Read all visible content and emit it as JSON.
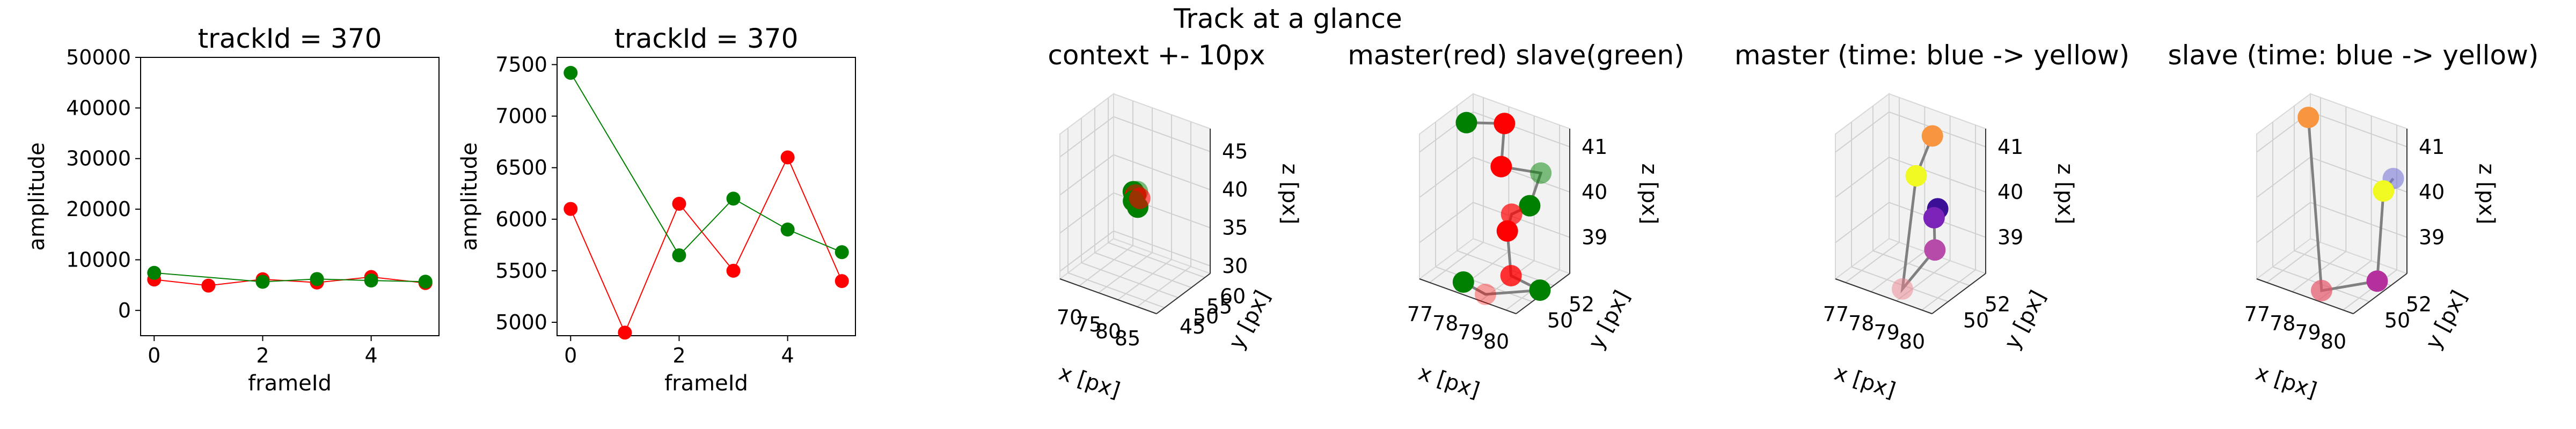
{
  "figure_title": "Track at a glance",
  "colors": {
    "red": "#ff0000",
    "green": "#008000",
    "connector": "#808080",
    "master_line": "#ff0000",
    "slave_line": "#008000"
  },
  "chart_data": [
    {
      "type": "line",
      "title": "trackId = 370",
      "xlabel": "frameId",
      "ylabel": "amplitude",
      "xlim": [
        -0.25,
        5.25
      ],
      "ylim": [
        -5000,
        50000
      ],
      "xticks": [
        "0",
        "2",
        "4"
      ],
      "yticks": [
        "0",
        "10000",
        "20000",
        "30000",
        "40000",
        "50000"
      ],
      "grid": false,
      "series": [
        {
          "color": "red",
          "x": [
            0,
            1,
            2,
            3,
            4,
            5
          ],
          "y": [
            6100,
            4900,
            6150,
            5500,
            6600,
            5400
          ]
        },
        {
          "color": "green",
          "x": [
            0,
            2,
            3,
            4,
            5
          ],
          "y": [
            7420,
            5650,
            6200,
            5900,
            5680
          ]
        }
      ]
    },
    {
      "type": "line",
      "title": "trackId = 370",
      "xlabel": "frameId",
      "ylabel": "amplitude",
      "xlim": [
        -0.25,
        5.25
      ],
      "ylim": [
        4870,
        7570
      ],
      "xticks": [
        "0",
        "2",
        "4"
      ],
      "yticks": [
        "5000",
        "5500",
        "6000",
        "6500",
        "7000",
        "7500"
      ],
      "grid": false,
      "series": [
        {
          "color": "red",
          "x": [
            0,
            1,
            2,
            3,
            4,
            5
          ],
          "y": [
            6100,
            4900,
            6150,
            5500,
            6600,
            5400
          ]
        },
        {
          "color": "green",
          "x": [
            0,
            2,
            3,
            4,
            5
          ],
          "y": [
            7420,
            5650,
            6200,
            5900,
            5680
          ]
        }
      ]
    },
    {
      "type": "scatter",
      "title": "context +- 10px",
      "xlabel": "x [px]",
      "ylabel": "y [px]",
      "zlabel": "z [px]",
      "xlim": [
        65,
        90
      ],
      "ylim": [
        42,
        62
      ],
      "zlim": [
        29,
        48
      ],
      "xticks": [
        "70",
        "75",
        "80",
        "85"
      ],
      "yticks": [
        "45",
        "50",
        "55",
        "60"
      ],
      "zticks": [
        "30",
        "35",
        "40",
        "45"
      ],
      "grid": true,
      "points": [
        {
          "x": 77.4,
          "y": 51.5,
          "z": 40.2,
          "color": "green",
          "opacity": 1.0
        },
        {
          "x": 78.2,
          "y": 51.2,
          "z": 40.0,
          "color": "red",
          "opacity": 1.0
        },
        {
          "x": 78.8,
          "y": 51.0,
          "z": 40.6,
          "color": "green",
          "opacity": 0.5
        },
        {
          "x": 78.0,
          "y": 50.7,
          "z": 39.3,
          "color": "green",
          "opacity": 1.0
        },
        {
          "x": 79.3,
          "y": 50.4,
          "z": 38.8,
          "color": "green",
          "opacity": 1.0
        },
        {
          "x": 79.0,
          "y": 51.6,
          "z": 39.6,
          "color": "red",
          "opacity": 0.6
        }
      ]
    },
    {
      "type": "scatter",
      "title": "master(red) slave(green)",
      "xlabel": "x [px]",
      "ylabel": "y [px]",
      "zlabel": "z [px]",
      "xlim": [
        76.6,
        80.4
      ],
      "ylim": [
        48.5,
        53.5
      ],
      "zlim": [
        38.2,
        41.4
      ],
      "xticks": [
        "77",
        "78",
        "79",
        "80"
      ],
      "yticks": [
        "50",
        "52"
      ],
      "zticks": [
        "39",
        "40",
        "41"
      ],
      "grid": true,
      "points": [
        {
          "x": 76.8,
          "y": 52.4,
          "z": 41.0,
          "color": "green",
          "opacity": 1.0
        },
        {
          "x": 78.0,
          "y": 53.1,
          "z": 41.1,
          "color": "red",
          "opacity": 1.0
        },
        {
          "x": 78.0,
          "y": 52.8,
          "z": 40.2,
          "color": "red",
          "opacity": 1.0
        },
        {
          "x": 79.6,
          "y": 52.7,
          "z": 40.4,
          "color": "green",
          "opacity": 0.5
        },
        {
          "x": 79.5,
          "y": 51.9,
          "z": 39.8,
          "color": "green",
          "opacity": 1.0
        },
        {
          "x": 79.0,
          "y": 51.4,
          "z": 39.6,
          "color": "red",
          "opacity": 0.7
        },
        {
          "x": 79.0,
          "y": 51.0,
          "z": 39.3,
          "color": "red",
          "opacity": 1.0
        },
        {
          "x": 79.4,
          "y": 50.4,
          "z": 38.5,
          "color": "red",
          "opacity": 0.8
        },
        {
          "x": 80.2,
          "y": 51.2,
          "z": 38.2,
          "color": "green",
          "opacity": 1.0
        },
        {
          "x": 78.9,
          "y": 49.2,
          "z": 38.2,
          "color": "red",
          "opacity": 0.35
        },
        {
          "x": 78.2,
          "y": 48.8,
          "z": 38.4,
          "color": "green",
          "opacity": 1.0
        }
      ]
    },
    {
      "type": "scatter",
      "title": "master (time: blue -> yellow)",
      "xlabel": "x [px]",
      "ylabel": "y [px]",
      "zlabel": "z [px]",
      "xlim": [
        76.6,
        80.4
      ],
      "ylim": [
        48.5,
        53.5
      ],
      "zlim": [
        38.2,
        41.4
      ],
      "xticks": [
        "77",
        "78",
        "79",
        "80"
      ],
      "yticks": [
        "50",
        "52"
      ],
      "zticks": [
        "39",
        "40",
        "41"
      ],
      "grid": true,
      "points": [
        {
          "x": 79.4,
          "y": 51.4,
          "z": 39.8,
          "color": "#3b0f96",
          "opacity": 1.0
        },
        {
          "x": 79.3,
          "y": 51.3,
          "z": 39.6,
          "color": "#7b22b8",
          "opacity": 1.0
        },
        {
          "x": 79.5,
          "y": 50.9,
          "z": 39.0,
          "color": "#b64ba9",
          "opacity": 1.0
        },
        {
          "x": 78.9,
          "y": 49.3,
          "z": 38.3,
          "color": "#ec7f8e",
          "opacity": 0.5
        },
        {
          "x": 78.3,
          "y": 52.0,
          "z": 40.2,
          "color": "#f0f921",
          "opacity": 1.0
        },
        {
          "x": 78.6,
          "y": 52.8,
          "z": 41.0,
          "color": "#f89540",
          "opacity": 1.0
        }
      ]
    },
    {
      "type": "scatter",
      "title": "slave (time: blue -> yellow)",
      "xlabel": "x [px]",
      "ylabel": "y [px]",
      "zlabel": "z [px]",
      "xlim": [
        76.6,
        80.4
      ],
      "ylim": [
        48.5,
        53.5
      ],
      "zlim": [
        38.2,
        41.4
      ],
      "xticks": [
        "77",
        "78",
        "79",
        "80"
      ],
      "yticks": [
        "50",
        "52"
      ],
      "zticks": [
        "39",
        "40",
        "41"
      ],
      "grid": true,
      "points": [
        {
          "x": 80.2,
          "y": 52.7,
          "z": 40.4,
          "color": "#7a7ad6",
          "opacity": 0.6
        },
        {
          "x": 79.9,
          "y": 52.5,
          "z": 40.1,
          "color": "#f0f921",
          "opacity": 1.0
        },
        {
          "x": 80.2,
          "y": 51.2,
          "z": 38.4,
          "color": "#b4309c",
          "opacity": 1.0
        },
        {
          "x": 78.9,
          "y": 49.1,
          "z": 38.3,
          "color": "#e6576a",
          "opacity": 0.7
        },
        {
          "x": 76.9,
          "y": 52.6,
          "z": 41.1,
          "color": "#f89540",
          "opacity": 1.0
        }
      ]
    }
  ]
}
